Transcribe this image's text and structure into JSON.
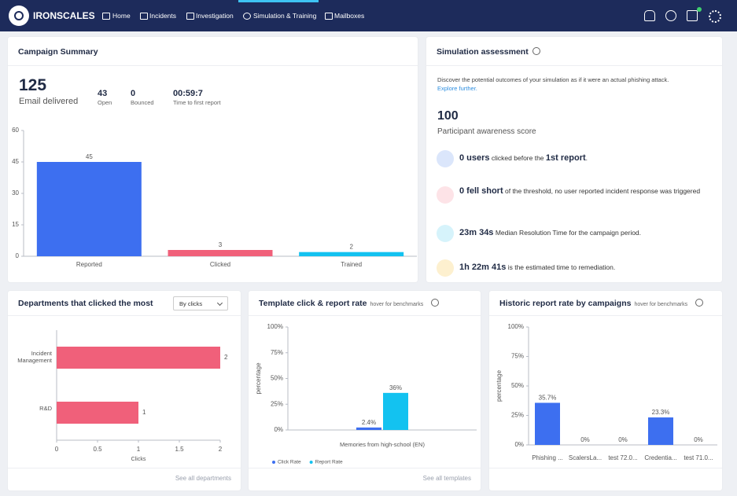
{
  "nav": {
    "logo": "IRONSCALES",
    "items": [
      "Home",
      "Incidents",
      "Investigation",
      "Simulation & Training",
      "Mailboxes"
    ]
  },
  "campaign_summary": {
    "title": "Campaign Summary",
    "delivered": "125",
    "delivered_label": "Email delivered",
    "stats": [
      {
        "value": "43",
        "label": "Open"
      },
      {
        "value": "0",
        "label": "Bounced"
      },
      {
        "value": "00:59:7",
        "label": "Time to first report"
      }
    ],
    "chart": {
      "type": "bar",
      "categories": [
        "Reported",
        "Clicked",
        "Trained"
      ],
      "values": [
        45,
        3,
        2
      ],
      "colors": [
        "#3d6ff0",
        "#f0607a",
        "#13c2f0"
      ],
      "ylim": [
        0,
        60
      ],
      "yticks": [
        0,
        15,
        30,
        45,
        60
      ],
      "grid": false
    }
  },
  "simulation_assessment": {
    "title": "Simulation assessment",
    "description": "Discover the potential outcomes of your simulation as if it were an actual phishing attack.",
    "link": "Explore further.",
    "score": "100",
    "score_label": "Participant awareness score",
    "items": [
      {
        "lead": "0 users",
        "text": "clicked before the",
        "emphasis": "1st report",
        "end": "."
      },
      {
        "lead": "0 fell short",
        "text": "of the threshold, no user reported incident response was triggered"
      },
      {
        "lead": "23m 34s",
        "text": "Median Resolution Time for the campaign period."
      },
      {
        "lead": "1h 22m 41s",
        "text": "is the estimated time to remediation."
      }
    ]
  },
  "departments": {
    "title": "Departments that clicked the most",
    "dropdown": "By clicks",
    "footer": "See all departments",
    "chart": {
      "type": "bar",
      "orientation": "horizontal",
      "categories": [
        "Incident Management",
        "R&D"
      ],
      "values": [
        2,
        1
      ],
      "color": "#f0607a",
      "xlim": [
        0,
        2
      ],
      "xticks": [
        0,
        0.5,
        1,
        1.5,
        2
      ],
      "xlabel": "Clicks",
      "grid": false
    }
  },
  "template": {
    "title": "Template click & report rate",
    "hint": "hover for benchmarks",
    "footer": "See all templates",
    "chart": {
      "type": "bar",
      "categories": [
        "Memories from high-school (EN)"
      ],
      "ylabel": "percentage",
      "series": [
        {
          "name": "Click Rate",
          "color": "#3d6ff0",
          "values": [
            2.4
          ],
          "value_labels": [
            "2.4%"
          ]
        },
        {
          "name": "Report Rate",
          "color": "#13c2f0",
          "values": [
            36
          ],
          "value_labels": [
            "36%"
          ]
        }
      ],
      "ylim": [
        0,
        100
      ],
      "yticks": [
        {
          "value": 0,
          "label": "0%"
        },
        {
          "value": 25,
          "label": "25%"
        },
        {
          "value": 50,
          "label": "50%"
        },
        {
          "value": 75,
          "label": "75%"
        },
        {
          "value": 100,
          "label": "100%"
        }
      ],
      "grid": false
    }
  },
  "historic": {
    "title": "Historic report rate by campaigns",
    "hint": "hover for benchmarks",
    "chart": {
      "type": "bar",
      "categories": [
        "Phishing ...",
        "ScalersLa...",
        "test 72.0...",
        "Credentia...",
        "test 71.0..."
      ],
      "values": [
        35.7,
        0,
        0,
        23.3,
        0
      ],
      "value_labels": [
        "35.7%",
        "0%",
        "0%",
        "23.3%",
        "0%"
      ],
      "color": "#3d6ff0",
      "ylabel": "percentage",
      "ylim": [
        0,
        100
      ],
      "yticks": [
        {
          "value": 0,
          "label": "0%"
        },
        {
          "value": 25,
          "label": "25%"
        },
        {
          "value": 50,
          "label": "50%"
        },
        {
          "value": 75,
          "label": "75%"
        },
        {
          "value": 100,
          "label": "100%"
        }
      ],
      "grid": false
    }
  }
}
